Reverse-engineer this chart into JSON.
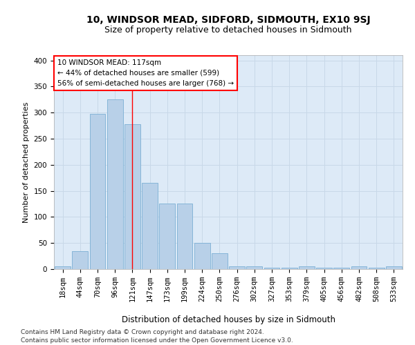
{
  "title1": "10, WINDSOR MEAD, SIDFORD, SIDMOUTH, EX10 9SJ",
  "title2": "Size of property relative to detached houses in Sidmouth",
  "xlabel": "Distribution of detached houses by size in Sidmouth",
  "ylabel": "Number of detached properties",
  "bar_color": "#b8d0e8",
  "bar_edge_color": "#7aafd4",
  "grid_color": "#c8d8e8",
  "background_color": "#ddeaf7",
  "categories": [
    "18sqm",
    "44sqm",
    "70sqm",
    "96sqm",
    "121sqm",
    "147sqm",
    "173sqm",
    "199sqm",
    "224sqm",
    "250sqm",
    "276sqm",
    "302sqm",
    "327sqm",
    "353sqm",
    "379sqm",
    "405sqm",
    "456sqm",
    "482sqm",
    "508sqm",
    "533sqm"
  ],
  "values": [
    5,
    35,
    298,
    325,
    278,
    165,
    125,
    125,
    50,
    30,
    5,
    5,
    2,
    2,
    5,
    2,
    2,
    5,
    2,
    5
  ],
  "annotation_text": "10 WINDSOR MEAD: 117sqm\n← 44% of detached houses are smaller (599)\n56% of semi-detached houses are larger (768) →",
  "annotation_box_color": "white",
  "annotation_box_edge": "red",
  "red_line_x": 4.0,
  "footer1": "Contains HM Land Registry data © Crown copyright and database right 2024.",
  "footer2": "Contains public sector information licensed under the Open Government Licence v3.0.",
  "ylim_max": 410,
  "yticks": [
    0,
    50,
    100,
    150,
    200,
    250,
    300,
    350,
    400
  ],
  "title1_fontsize": 10,
  "title2_fontsize": 9,
  "xlabel_fontsize": 8.5,
  "ylabel_fontsize": 8,
  "tick_fontsize": 7.5,
  "footer_fontsize": 6.5
}
